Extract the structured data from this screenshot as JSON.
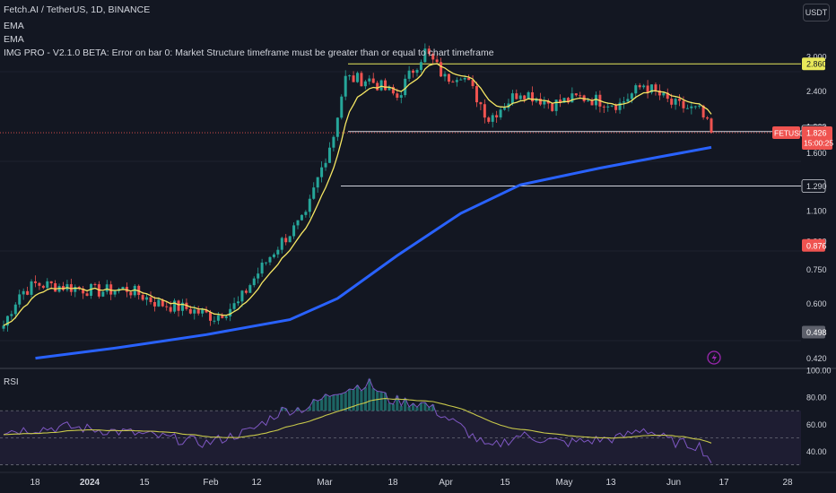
{
  "header": {
    "symbol_line": "Fetch.AI / TetherUS, 1D, BINANCE",
    "indicators": [
      "EMA",
      "EMA",
      "IMG PRO - V2.1.0 BETA: Error on bar 0: Market Structure timeframe must be greater than or equal to chart timeframe"
    ],
    "quote_currency": "USDT"
  },
  "colors": {
    "background": "#131722",
    "up_candle": "#26a69a",
    "down_candle": "#ef5350",
    "ema_fast": "#f5e663",
    "ema_slow": "#2962ff",
    "rsi_line": "#7e57c2",
    "rsi_ma": "#c8c84a",
    "level_yellow": "#e8e85a",
    "level_white": "#d1d4dc"
  },
  "price_axis": {
    "ticks": [
      "3.000",
      "2.400",
      "1.900",
      "1.600",
      "1.100",
      "0.900",
      "0.750",
      "0.600",
      "0.420"
    ],
    "labels": [
      {
        "text": "2.860",
        "style": "yellow"
      },
      {
        "text": "1.840",
        "style": "dark"
      },
      {
        "text": "1.290",
        "style": "dark"
      },
      {
        "text": "0.876",
        "style": "red"
      },
      {
        "text": "0.498",
        "style": "gray"
      }
    ],
    "current": {
      "symbol": "FETUSDT",
      "price": "1.826",
      "countdown": "15:00:25"
    }
  },
  "rsi": {
    "title": "RSI",
    "ticks": [
      "100.00",
      "80.00",
      "60.00",
      "40.00"
    ]
  },
  "time_axis": {
    "labels": [
      "18",
      "2024",
      "15",
      "Feb",
      "12",
      "Mar",
      "18",
      "Apr",
      "15",
      "May",
      "13",
      "Jun",
      "17",
      "28"
    ]
  },
  "chart_data": {
    "type": "candlestick",
    "symbol": "FETUSDT",
    "interval": "1D",
    "y_scale": "log",
    "ylim": [
      0.4,
      3.2
    ],
    "x": [
      "2023-12-12",
      "2024-06-07"
    ],
    "close_points": [
      [
        "2023-12-12",
        0.52
      ],
      [
        "2023-12-16",
        0.64
      ],
      [
        "2023-12-20",
        0.68
      ],
      [
        "2023-12-28",
        0.67
      ],
      [
        "2024-01-05",
        0.65
      ],
      [
        "2024-01-12",
        0.66
      ],
      [
        "2024-01-20",
        0.6
      ],
      [
        "2024-01-27",
        0.58
      ],
      [
        "2024-02-03",
        0.55
      ],
      [
        "2024-02-09",
        0.6
      ],
      [
        "2024-02-15",
        0.76
      ],
      [
        "2024-02-20",
        0.9
      ],
      [
        "2024-02-26",
        1.05
      ],
      [
        "2024-03-01",
        1.45
      ],
      [
        "2024-03-04",
        1.8
      ],
      [
        "2024-03-07",
        2.6
      ],
      [
        "2024-03-13",
        2.58
      ],
      [
        "2024-03-20",
        2.3
      ],
      [
        "2024-03-27",
        3.1
      ],
      [
        "2024-04-01",
        2.6
      ],
      [
        "2024-04-05",
        2.7
      ],
      [
        "2024-04-12",
        2.0
      ],
      [
        "2024-04-20",
        2.4
      ],
      [
        "2024-04-28",
        2.2
      ],
      [
        "2024-05-05",
        2.3
      ],
      [
        "2024-05-15",
        2.2
      ],
      [
        "2024-05-21",
        2.5
      ],
      [
        "2024-05-28",
        2.2
      ],
      [
        "2024-06-04",
        2.1
      ],
      [
        "2024-06-07",
        1.826
      ]
    ],
    "levels": [
      2.86,
      1.84,
      1.29
    ],
    "current_price": 1.826,
    "ema_slow_points": [
      [
        "2023-12-20",
        0.42
      ],
      [
        "2024-01-10",
        0.45
      ],
      [
        "2024-02-01",
        0.49
      ],
      [
        "2024-02-22",
        0.54
      ],
      [
        "2024-03-05",
        0.62
      ],
      [
        "2024-03-20",
        0.82
      ],
      [
        "2024-04-05",
        1.08
      ],
      [
        "2024-04-20",
        1.3
      ],
      [
        "2024-05-10",
        1.45
      ],
      [
        "2024-05-25",
        1.56
      ],
      [
        "2024-06-07",
        1.66
      ]
    ],
    "rsi_points": [
      [
        "2023-12-12",
        55
      ],
      [
        "2023-12-28",
        58
      ],
      [
        "2024-01-12",
        54
      ],
      [
        "2024-02-01",
        46
      ],
      [
        "2024-02-12",
        55
      ],
      [
        "2024-02-20",
        70
      ],
      [
        "2024-02-26",
        72
      ],
      [
        "2024-03-05",
        85
      ],
      [
        "2024-03-13",
        90
      ],
      [
        "2024-03-18",
        78
      ],
      [
        "2024-03-27",
        75
      ],
      [
        "2024-04-05",
        58
      ],
      [
        "2024-04-12",
        42
      ],
      [
        "2024-04-20",
        52
      ],
      [
        "2024-05-01",
        46
      ],
      [
        "2024-05-15",
        50
      ],
      [
        "2024-05-21",
        57
      ],
      [
        "2024-05-28",
        47
      ],
      [
        "2024-06-04",
        44
      ],
      [
        "2024-06-07",
        33
      ]
    ],
    "rsi_ylim": [
      25,
      100
    ]
  }
}
